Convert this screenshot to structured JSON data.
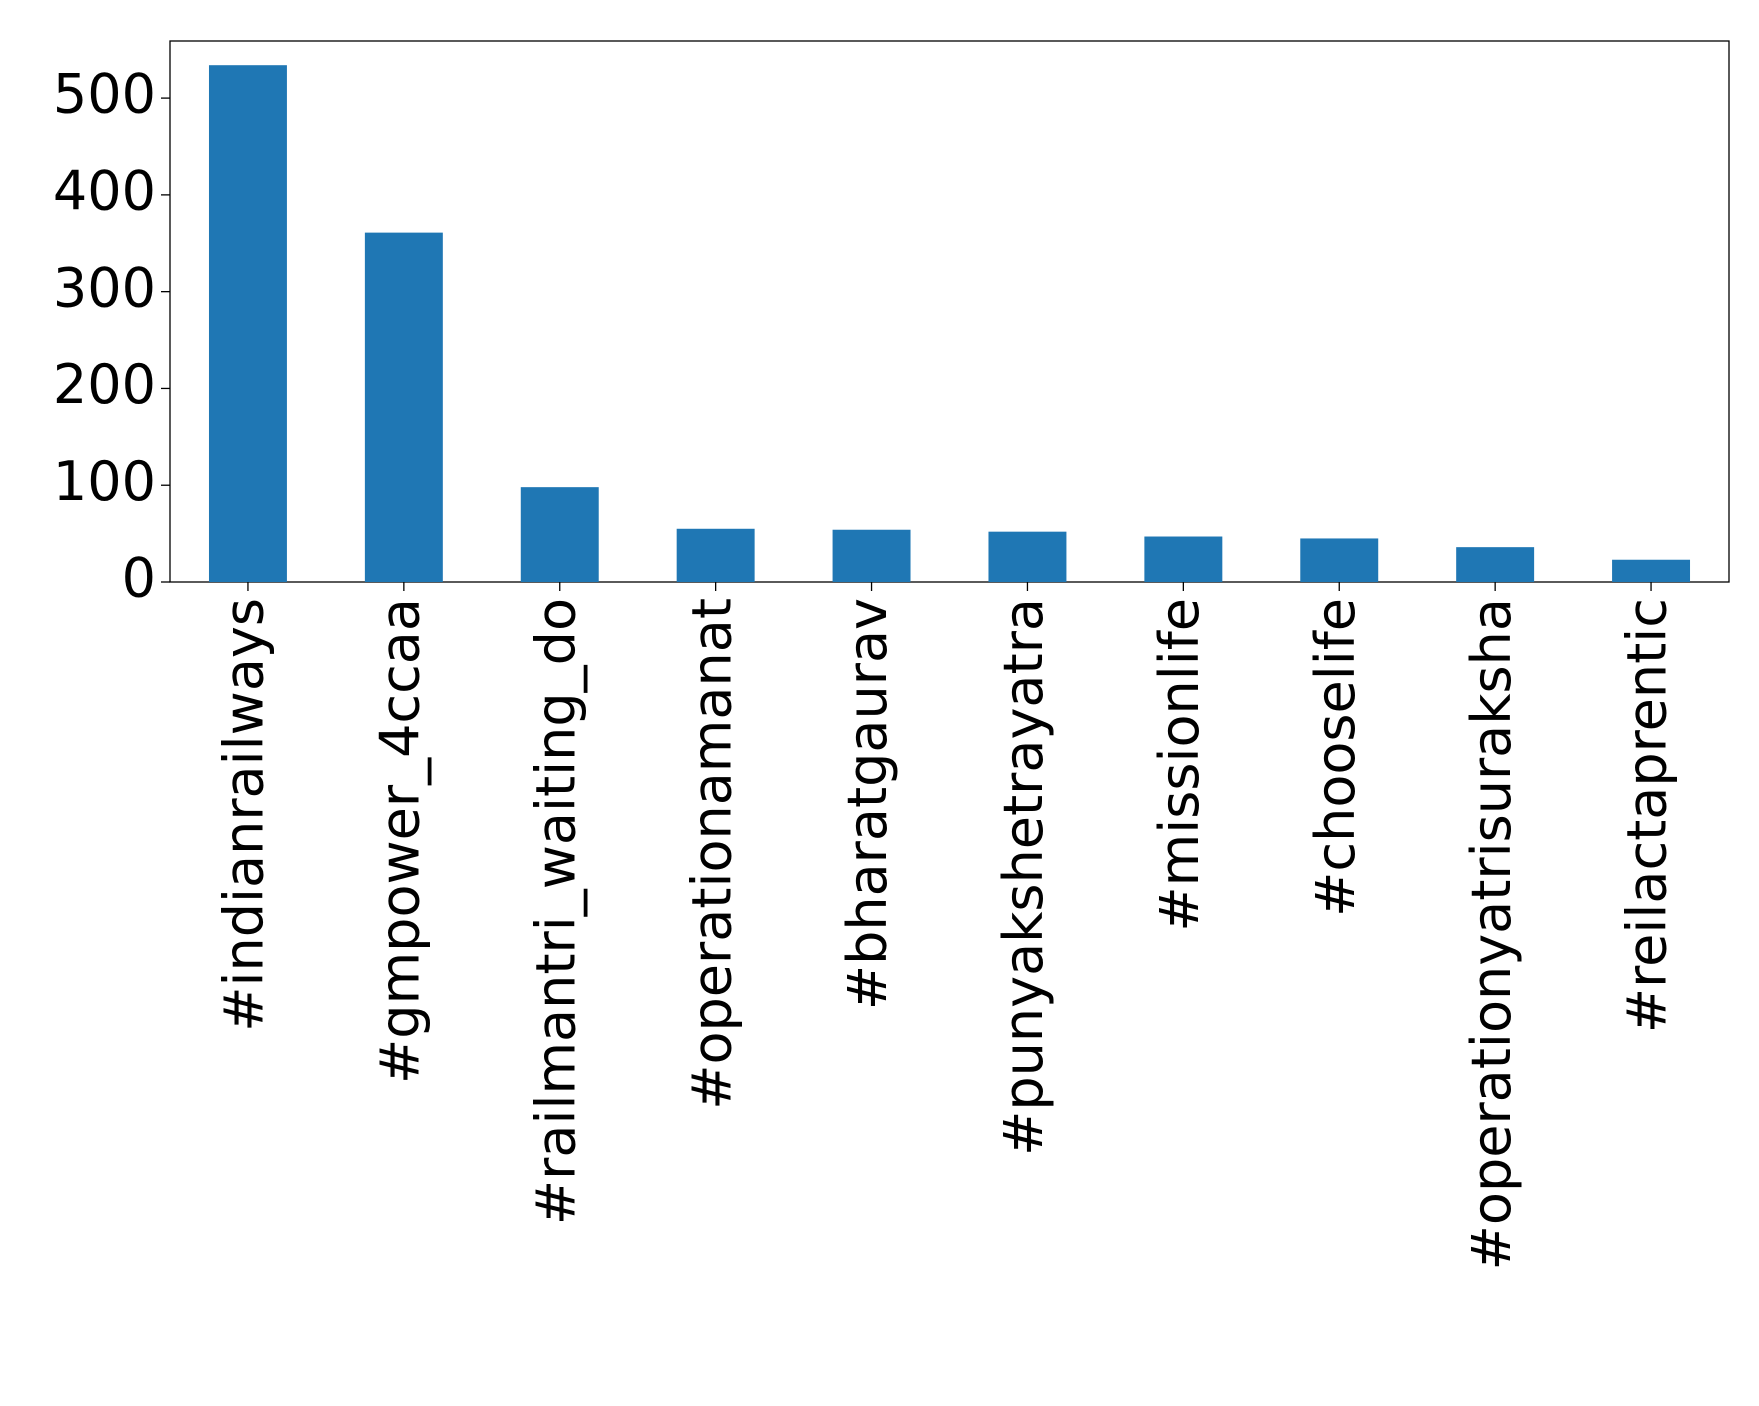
{
  "chart_data": {
    "type": "bar",
    "categories": [
      "#indianrailways",
      "#gmpower_4ccaa",
      "#railmantri_waiting_do",
      "#operationamanat",
      "#bharatgaurav",
      "#punyakshetrayatra",
      "#missionlife",
      "#chooselife",
      "#operationyatrisuraksha",
      "#reilactaprentic"
    ],
    "values": [
      534,
      361,
      98,
      55,
      54,
      52,
      47,
      45,
      36,
      23
    ],
    "color": "#1f77b4",
    "ylim": [
      0,
      559
    ],
    "yticks": [
      0,
      100,
      200,
      300,
      400,
      500
    ],
    "grid": false
  }
}
